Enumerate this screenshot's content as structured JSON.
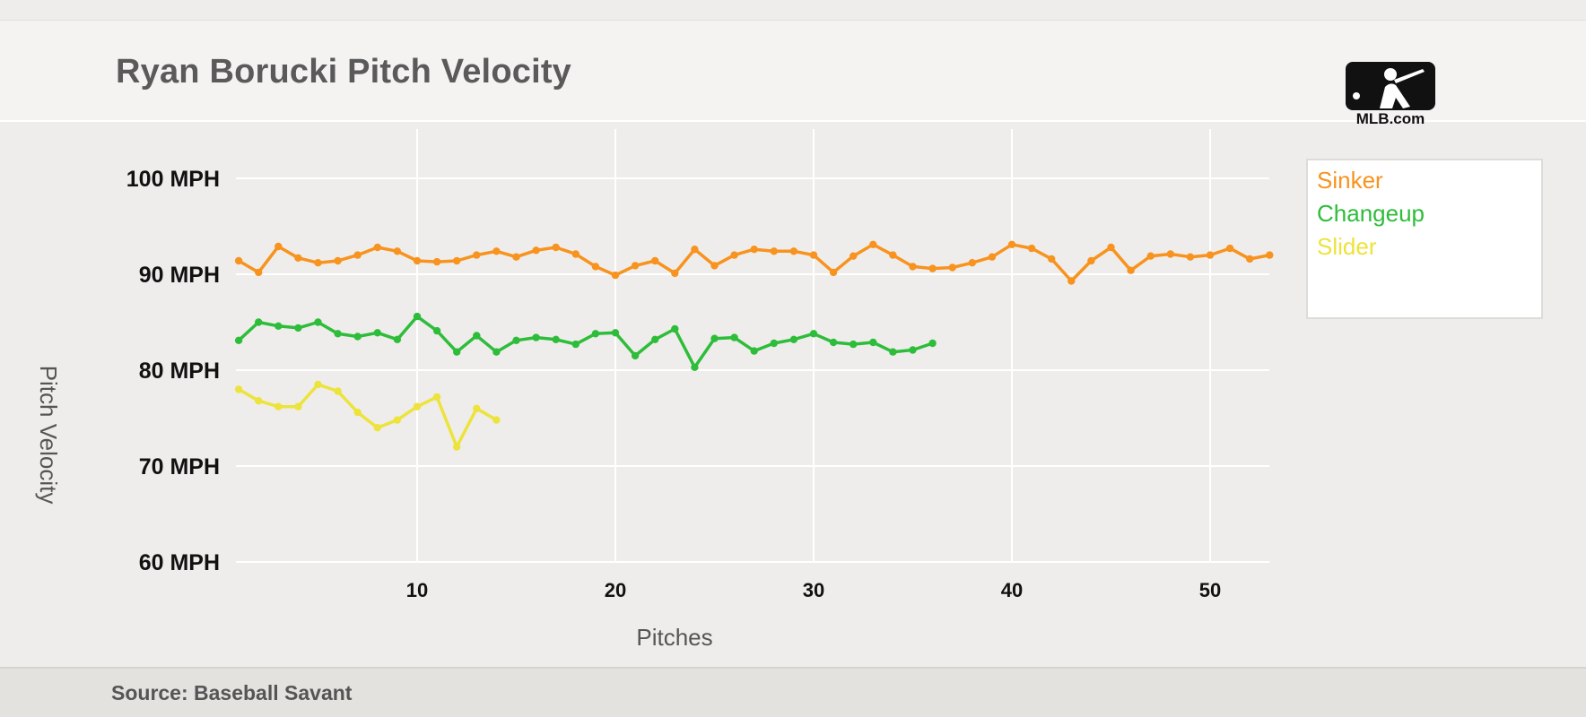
{
  "header": {
    "title": "Ryan Borucki Pitch Velocity",
    "logo_text": "MLB.com"
  },
  "footer": {
    "source": "Source: Baseball Savant"
  },
  "colors": {
    "Sinker": "#f7931e",
    "Changeup": "#2ebd3a",
    "Slider": "#ece33c",
    "grid": "#ffffff",
    "background": "#efedeb"
  },
  "chart_data": {
    "type": "line",
    "title": "Ryan Borucki Pitch Velocity",
    "xlabel": "Pitches",
    "ylabel": "Pitch Velocity",
    "xlim": [
      1,
      53
    ],
    "ylim": [
      60,
      105
    ],
    "x_ticks": [
      "10",
      "20",
      "30",
      "40",
      "50"
    ],
    "x_tick_values": [
      10,
      20,
      30,
      40,
      50
    ],
    "y_ticks": [
      "100 MPH",
      "90 MPH",
      "80 MPH",
      "70 MPH",
      "60 MPH"
    ],
    "y_tick_values": [
      100,
      90,
      80,
      70,
      60
    ],
    "grid": true,
    "legend": "right",
    "series": [
      {
        "name": "Sinker",
        "x_start": 1,
        "values": [
          91.4,
          90.2,
          92.9,
          91.7,
          91.2,
          91.4,
          92.0,
          92.8,
          92.4,
          91.4,
          91.3,
          91.4,
          92.0,
          92.4,
          91.8,
          92.5,
          92.8,
          92.1,
          90.8,
          89.9,
          90.9,
          91.4,
          90.1,
          92.6,
          90.9,
          92.0,
          92.6,
          92.4,
          92.4,
          92.0,
          90.2,
          91.9,
          93.1,
          92.0,
          90.8,
          90.6,
          90.7,
          91.2,
          91.8,
          93.1,
          92.7,
          91.6,
          89.3,
          91.4,
          92.8,
          90.4,
          91.9,
          92.1,
          91.8,
          92.0,
          92.7,
          91.6,
          92.0
        ]
      },
      {
        "name": "Changeup",
        "x_start": 1,
        "values": [
          83.1,
          85.0,
          84.6,
          84.4,
          85.0,
          83.8,
          83.5,
          83.9,
          83.2,
          85.6,
          84.1,
          81.9,
          83.6,
          81.9,
          83.1,
          83.4,
          83.2,
          82.7,
          83.8,
          83.9,
          81.5,
          83.2,
          84.3,
          80.3,
          83.3,
          83.4,
          82.0,
          82.8,
          83.2,
          83.8,
          82.9,
          82.7,
          82.9,
          81.9,
          82.1,
          82.8
        ]
      },
      {
        "name": "Slider",
        "x_start": 1,
        "values": [
          78.0,
          76.8,
          76.2,
          76.2,
          78.5,
          77.8,
          75.6,
          74.0,
          74.8,
          76.2,
          77.2,
          72.0,
          76.0,
          74.8
        ]
      }
    ]
  }
}
